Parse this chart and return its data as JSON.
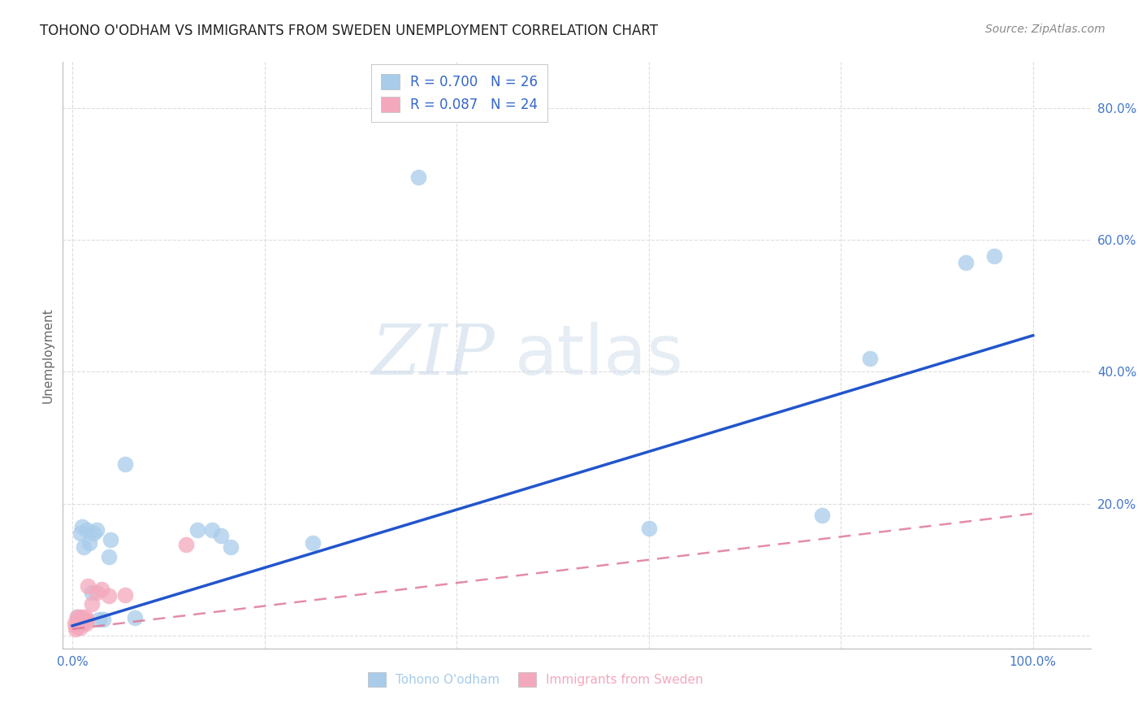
{
  "title": "TOHONO O'ODHAM VS IMMIGRANTS FROM SWEDEN UNEMPLOYMENT CORRELATION CHART",
  "source": "Source: ZipAtlas.com",
  "ylabel": "Unemployment",
  "xlim": [
    -0.01,
    1.06
  ],
  "ylim": [
    -0.02,
    0.87
  ],
  "xticks": [
    0.0,
    0.2,
    0.4,
    0.6,
    0.8,
    1.0
  ],
  "xticklabels": [
    "0.0%",
    "",
    "",
    "",
    "",
    "100.0%"
  ],
  "yticks": [
    0.0,
    0.2,
    0.4,
    0.6,
    0.8
  ],
  "yticklabels": [
    "",
    "20.0%",
    "40.0%",
    "60.0%",
    "80.0%"
  ],
  "blue_scatter_x": [
    0.005,
    0.008,
    0.01,
    0.012,
    0.015,
    0.018,
    0.02,
    0.022,
    0.025,
    0.028,
    0.032,
    0.038,
    0.04,
    0.055,
    0.065,
    0.13,
    0.145,
    0.155,
    0.165,
    0.25,
    0.36,
    0.6,
    0.78,
    0.83,
    0.93,
    0.96
  ],
  "blue_scatter_y": [
    0.028,
    0.155,
    0.165,
    0.135,
    0.16,
    0.14,
    0.065,
    0.155,
    0.16,
    0.025,
    0.025,
    0.12,
    0.145,
    0.26,
    0.027,
    0.16,
    0.16,
    0.152,
    0.135,
    0.14,
    0.695,
    0.163,
    0.183,
    0.42,
    0.565,
    0.575
  ],
  "pink_scatter_x": [
    0.002,
    0.003,
    0.004,
    0.005,
    0.005,
    0.006,
    0.007,
    0.008,
    0.008,
    0.009,
    0.01,
    0.01,
    0.011,
    0.012,
    0.013,
    0.014,
    0.015,
    0.016,
    0.02,
    0.025,
    0.03,
    0.038,
    0.055,
    0.118
  ],
  "pink_scatter_y": [
    0.018,
    0.01,
    0.014,
    0.018,
    0.028,
    0.022,
    0.018,
    0.013,
    0.023,
    0.028,
    0.018,
    0.023,
    0.018,
    0.023,
    0.028,
    0.018,
    0.023,
    0.075,
    0.048,
    0.065,
    0.07,
    0.06,
    0.062,
    0.138
  ],
  "blue_line_x": [
    0.0,
    1.0
  ],
  "blue_line_y": [
    0.015,
    0.455
  ],
  "pink_line_x": [
    0.0,
    1.0
  ],
  "pink_line_y": [
    0.01,
    0.185
  ],
  "legend_blue_r": "R = 0.700",
  "legend_blue_n": "N = 26",
  "legend_pink_r": "R = 0.087",
  "legend_pink_n": "N = 24",
  "legend_blue_label": "Tohono O'odham",
  "legend_pink_label": "Immigrants from Sweden",
  "blue_color": "#A8CCEA",
  "blue_line_color": "#2255CC",
  "pink_color": "#F4A8BC",
  "pink_line_color": "#E07898",
  "tick_color": "#4477CC",
  "title_fontsize": 12,
  "axis_label_fontsize": 11,
  "tick_fontsize": 11,
  "source_fontsize": 10,
  "grid_color": "#DDDDDD",
  "legend_text_color": "#3366CC"
}
